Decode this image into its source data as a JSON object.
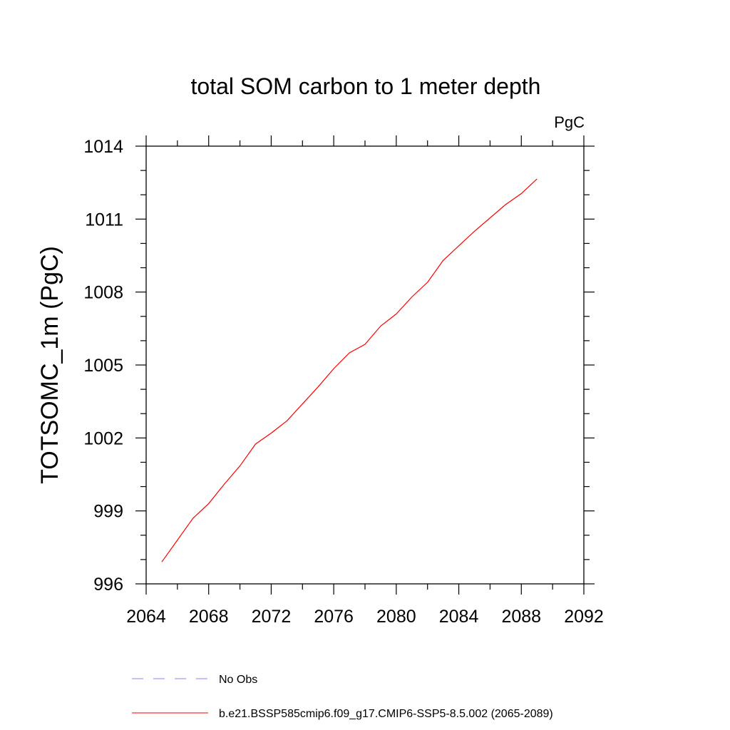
{
  "chart_data": {
    "type": "line",
    "title": "total SOM carbon to 1 meter depth",
    "units_label": "PgC",
    "xlabel": "",
    "ylabel": "TOTSOMC_1m  (PgC)",
    "xlim": [
      2064,
      2092
    ],
    "ylim": [
      996,
      1014
    ],
    "x_ticks": [
      2064,
      2068,
      2072,
      2076,
      2080,
      2084,
      2088,
      2092
    ],
    "x_minor_step": 2,
    "y_ticks": [
      996,
      999,
      1002,
      1005,
      1008,
      1011,
      1014
    ],
    "y_minor_step": 1,
    "grid": false,
    "legend_position": "bottom",
    "series": [
      {
        "name": "No Obs",
        "color": "#8080ff",
        "dash": "dashed",
        "x": [],
        "y": []
      },
      {
        "name": "b.e21.BSSP585cmip6.f09_g17.CMIP6-SSP5-8.5.002 (2065-2089)",
        "color": "#ff0000",
        "dash": "solid",
        "x": [
          2065,
          2066,
          2067,
          2068,
          2069,
          2070,
          2071,
          2072,
          2073,
          2074,
          2075,
          2076,
          2077,
          2078,
          2079,
          2080,
          2081,
          2082,
          2083,
          2084,
          2085,
          2086,
          2087,
          2088,
          2089
        ],
        "y": [
          996.9,
          997.8,
          998.7,
          999.3,
          1000.1,
          1000.85,
          1001.75,
          1002.2,
          1002.7,
          1003.4,
          1004.1,
          1004.85,
          1005.5,
          1005.85,
          1006.6,
          1007.1,
          1007.8,
          1008.4,
          1009.3,
          1009.9,
          1010.5,
          1011.05,
          1011.6,
          1012.05,
          1012.65
        ]
      }
    ]
  }
}
